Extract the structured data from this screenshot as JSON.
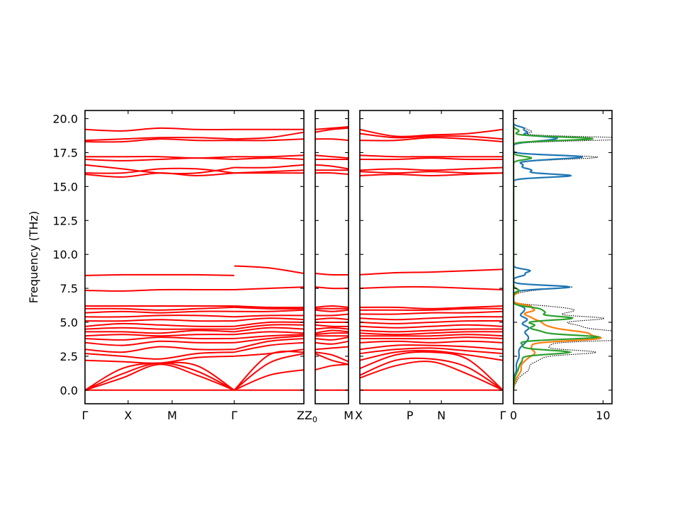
{
  "chart_data": {
    "type": "line",
    "ylabel": "Frequency (THz)",
    "ylim": [
      -1.0,
      20.6
    ],
    "yticks": [
      "0.0",
      "2.5",
      "5.0",
      "7.5",
      "10.0",
      "12.5",
      "15.0",
      "17.5",
      "20.0"
    ],
    "band_color": "#ff0000",
    "zero_line_color": "#0000ff",
    "panels": [
      {
        "id": "panel-1",
        "ticks": [
          {
            "label": "Γ",
            "pos": 0.0
          },
          {
            "label": "X",
            "pos": 0.197
          },
          {
            "label": "M",
            "pos": 0.398
          },
          {
            "label": "Γ",
            "pos": 0.682
          },
          {
            "label": "Z",
            "pos": 1.0
          }
        ],
        "segments": [
          {
            "from": 0.0,
            "to": 0.682,
            "bands": [
              [
                0.0,
                0.0,
                0.0,
                0.0,
                0.0
              ],
              [
                0.0,
                0.9,
                1.9,
                1.1,
                0.0
              ],
              [
                0.0,
                1.2,
                2.0,
                1.4,
                0.0
              ],
              [
                0.0,
                1.6,
                2.0,
                1.8,
                0.0
              ],
              [
                2.2,
                2.1,
                2.0,
                2.4,
                2.5
              ],
              [
                2.7,
                2.5,
                2.3,
                2.7,
                2.8
              ],
              [
                3.0,
                2.8,
                3.2,
                3.0,
                3.0
              ],
              [
                3.5,
                3.3,
                3.6,
                3.5,
                3.5
              ],
              [
                3.8,
                3.7,
                3.9,
                3.8,
                3.8
              ],
              [
                4.0,
                4.1,
                4.0,
                4.1,
                4.1
              ],
              [
                4.3,
                4.3,
                4.2,
                4.4,
                4.3
              ],
              [
                4.5,
                4.6,
                4.5,
                4.5,
                4.5
              ],
              [
                4.7,
                4.9,
                4.8,
                4.7,
                4.7
              ],
              [
                5.1,
                5.1,
                5.2,
                5.1,
                5.1
              ],
              [
                5.4,
                5.4,
                5.5,
                5.5,
                5.4
              ],
              [
                5.7,
                5.8,
                5.7,
                5.8,
                5.8
              ],
              [
                6.0,
                6.0,
                5.9,
                6.0,
                6.1
              ],
              [
                6.2,
                6.2,
                6.2,
                6.2,
                6.2
              ],
              [
                7.35,
                7.3,
                7.4,
                7.4,
                7.4
              ],
              [
                8.45,
                8.5,
                8.5,
                8.5,
                8.45
              ],
              [
                15.9,
                15.7,
                16.0,
                15.8,
                16.0
              ],
              [
                16.0,
                16.0,
                16.3,
                16.3,
                16.0
              ],
              [
                16.6,
                16.3,
                16.0,
                16.0,
                16.4
              ],
              [
                17.0,
                16.9,
                17.0,
                17.1,
                17.0
              ],
              [
                17.2,
                17.2,
                17.2,
                17.1,
                17.2
              ],
              [
                18.3,
                18.3,
                18.5,
                18.4,
                18.4
              ],
              [
                18.4,
                18.5,
                18.6,
                18.6,
                18.5
              ],
              [
                19.2,
                19.1,
                19.3,
                19.2,
                19.2
              ]
            ]
          },
          {
            "from": 0.682,
            "to": 1.0,
            "bands": [
              [
                0.0,
                0.0,
                0.0
              ],
              [
                0.0,
                1.1,
                1.5
              ],
              [
                0.0,
                2.0,
                2.7
              ],
              [
                0.0,
                2.6,
                2.8
              ],
              [
                2.5,
                2.7,
                3.0
              ],
              [
                2.8,
                3.3,
                3.5
              ],
              [
                3.0,
                3.6,
                3.8
              ],
              [
                3.5,
                3.8,
                4.0
              ],
              [
                3.8,
                4.0,
                4.1
              ],
              [
                4.1,
                4.3,
                4.2
              ],
              [
                4.3,
                4.6,
                4.5
              ],
              [
                4.5,
                4.8,
                4.8
              ],
              [
                4.7,
                5.0,
                5.0
              ],
              [
                5.1,
                5.3,
                5.2
              ],
              [
                5.4,
                5.5,
                5.5
              ],
              [
                5.8,
                5.8,
                5.9
              ],
              [
                6.1,
                6.0,
                6.0
              ],
              [
                6.2,
                6.1,
                6.1
              ],
              [
                7.4,
                7.5,
                7.6
              ],
              [
                9.15,
                9.0,
                8.6
              ],
              [
                16.0,
                16.0,
                16.0
              ],
              [
                16.0,
                16.1,
                16.2
              ],
              [
                16.4,
                16.4,
                16.6
              ],
              [
                17.0,
                17.1,
                17.0
              ],
              [
                17.2,
                17.2,
                17.3
              ],
              [
                18.4,
                18.4,
                18.5
              ],
              [
                18.5,
                18.6,
                19.0
              ],
              [
                19.2,
                19.2,
                19.2
              ]
            ]
          }
        ]
      },
      {
        "id": "panel-2",
        "ticks": [
          {
            "label": "Z",
            "pos": 0.0
          },
          {
            "label": "M",
            "pos": 1.0
          }
        ],
        "tick_Z0": {
          "main": "Z",
          "sub": "0"
        },
        "segments": [
          {
            "from": 0.0,
            "to": 1.0,
            "bands": [
              [
                0.0,
                0.0,
                0.0
              ],
              [
                1.5,
                1.8,
                1.9
              ],
              [
                2.7,
                2.2,
                1.9
              ],
              [
                2.8,
                2.6,
                2.1
              ],
              [
                3.0,
                3.1,
                3.2
              ],
              [
                3.5,
                3.4,
                3.6
              ],
              [
                3.8,
                3.7,
                3.9
              ],
              [
                4.0,
                4.0,
                4.0
              ],
              [
                4.1,
                4.2,
                4.2
              ],
              [
                4.2,
                4.4,
                4.3
              ],
              [
                4.5,
                4.6,
                4.5
              ],
              [
                4.8,
                4.7,
                4.7
              ],
              [
                5.0,
                5.0,
                5.0
              ],
              [
                5.2,
                5.3,
                5.2
              ],
              [
                5.5,
                5.5,
                5.6
              ],
              [
                5.9,
                5.8,
                5.9
              ],
              [
                6.0,
                6.0,
                6.0
              ],
              [
                6.1,
                6.2,
                6.1
              ],
              [
                7.6,
                7.5,
                7.5
              ],
              [
                8.6,
                8.5,
                8.5
              ],
              [
                16.0,
                16.0,
                15.9
              ],
              [
                16.2,
                16.2,
                16.2
              ],
              [
                16.6,
                16.5,
                16.3
              ],
              [
                17.0,
                17.0,
                17.0
              ],
              [
                17.3,
                17.2,
                17.1
              ],
              [
                18.5,
                18.5,
                18.4
              ],
              [
                19.0,
                19.2,
                19.3
              ],
              [
                19.2,
                19.3,
                19.4
              ]
            ]
          }
        ]
      },
      {
        "id": "panel-3",
        "ticks": [
          {
            "label": "X",
            "pos": 0.0
          },
          {
            "label": "P",
            "pos": 0.35
          },
          {
            "label": "N",
            "pos": 0.57
          },
          {
            "label": "Γ",
            "pos": 1.0
          }
        ],
        "segments": [
          {
            "from": 0.0,
            "to": 1.0,
            "bands": [
              [
                0.0,
                0.0,
                0.0,
                0.0,
                0.0
              ],
              [
                0.9,
                1.8,
                2.1,
                1.2,
                0.0
              ],
              [
                1.1,
                2.2,
                2.3,
                1.7,
                0.0
              ],
              [
                1.6,
                2.6,
                2.8,
                2.3,
                0.0
              ],
              [
                2.2,
                2.8,
                2.9,
                2.6,
                2.2
              ],
              [
                2.7,
                3.0,
                3.1,
                2.9,
                2.7
              ],
              [
                3.0,
                3.3,
                3.3,
                3.2,
                3.0
              ],
              [
                3.5,
                3.6,
                3.5,
                3.6,
                3.5
              ],
              [
                3.8,
                3.8,
                3.8,
                3.9,
                3.8
              ],
              [
                4.0,
                4.0,
                4.0,
                4.1,
                4.0
              ],
              [
                4.2,
                4.1,
                4.2,
                4.3,
                4.3
              ],
              [
                4.4,
                4.3,
                4.4,
                4.5,
                4.5
              ],
              [
                4.7,
                4.6,
                4.7,
                4.8,
                4.7
              ],
              [
                5.0,
                4.9,
                5.0,
                5.1,
                5.1
              ],
              [
                5.3,
                5.2,
                5.3,
                5.4,
                5.4
              ],
              [
                5.6,
                5.6,
                5.7,
                5.7,
                5.8
              ],
              [
                5.9,
                5.9,
                5.9,
                6.0,
                6.0
              ],
              [
                6.1,
                6.1,
                6.0,
                6.1,
                6.2
              ],
              [
                7.5,
                7.6,
                7.6,
                7.5,
                7.4
              ],
              [
                8.5,
                8.65,
                8.7,
                8.8,
                8.9
              ],
              [
                15.8,
                15.9,
                15.8,
                15.9,
                16.0
              ],
              [
                16.1,
                16.0,
                16.1,
                16.0,
                16.0
              ],
              [
                16.2,
                16.3,
                16.2,
                16.3,
                16.4
              ],
              [
                17.0,
                17.0,
                17.1,
                17.0,
                17.0
              ],
              [
                17.3,
                17.2,
                17.2,
                17.2,
                17.2
              ],
              [
                18.4,
                18.4,
                18.6,
                18.5,
                18.3
              ],
              [
                18.9,
                18.6,
                18.7,
                18.7,
                18.5
              ],
              [
                19.2,
                18.7,
                18.8,
                18.9,
                19.2
              ]
            ]
          }
        ]
      }
    ],
    "dos": {
      "xlim": [
        0,
        11
      ],
      "xticks": [
        "0",
        "10"
      ],
      "projections": [
        {
          "color": "#1f77b4",
          "peaks": [
            [
              0.6,
              0.05,
              0.2
            ],
            [
              1.5,
              0.3,
              0.3
            ],
            [
              2.5,
              0.6,
              0.4
            ],
            [
              3.5,
              1.0,
              0.35
            ],
            [
              4.0,
              1.2,
              0.3
            ],
            [
              4.6,
              1.5,
              0.2
            ],
            [
              5.2,
              1.5,
              0.2
            ],
            [
              5.8,
              1.0,
              0.2
            ],
            [
              6.1,
              0.8,
              0.15
            ],
            [
              7.4,
              0.5,
              0.12
            ],
            [
              7.6,
              6.2,
              0.12
            ],
            [
              8.5,
              1.2,
              0.12
            ],
            [
              8.8,
              1.8,
              0.12
            ],
            [
              15.8,
              6.4,
              0.12
            ],
            [
              16.2,
              2.0,
              0.15
            ],
            [
              16.6,
              1.0,
              0.12
            ],
            [
              17.0,
              2.5,
              0.12
            ],
            [
              17.2,
              7.0,
              0.12
            ],
            [
              18.4,
              2.6,
              0.12
            ],
            [
              18.6,
              4.0,
              0.12
            ],
            [
              19.0,
              1.5,
              0.12
            ],
            [
              19.3,
              1.1,
              0.12
            ]
          ]
        },
        {
          "color": "#ff7f0e",
          "peaks": [
            [
              0.8,
              0.2,
              0.3
            ],
            [
              1.5,
              0.8,
              0.35
            ],
            [
              2.3,
              1.2,
              0.3
            ],
            [
              2.8,
              2.0,
              0.25
            ],
            [
              3.3,
              1.6,
              0.2
            ],
            [
              3.8,
              8.5,
              0.18
            ],
            [
              4.2,
              7.2,
              0.2
            ],
            [
              4.6,
              3.2,
              0.2
            ],
            [
              5.0,
              2.5,
              0.2
            ],
            [
              5.4,
              1.5,
              0.2
            ],
            [
              5.9,
              2.2,
              0.15
            ],
            [
              6.2,
              1.6,
              0.12
            ],
            [
              7.3,
              0.6,
              0.15
            ]
          ]
        },
        {
          "color": "#2ca02c",
          "peaks": [
            [
              0.8,
              0.1,
              0.3
            ],
            [
              1.6,
              0.5,
              0.35
            ],
            [
              2.3,
              0.9,
              0.3
            ],
            [
              2.8,
              6.0,
              0.15
            ],
            [
              3.3,
              1.0,
              0.2
            ],
            [
              3.9,
              9.0,
              0.15
            ],
            [
              4.3,
              3.0,
              0.2
            ],
            [
              4.8,
              2.2,
              0.15
            ],
            [
              5.3,
              6.5,
              0.15
            ],
            [
              5.7,
              3.0,
              0.15
            ],
            [
              6.0,
              2.5,
              0.15
            ],
            [
              7.35,
              0.6,
              0.12
            ],
            [
              17.1,
              2.0,
              0.12
            ],
            [
              18.5,
              7.0,
              0.12
            ],
            [
              18.6,
              2.5,
              0.12
            ],
            [
              19.1,
              0.6,
              0.12
            ]
          ]
        }
      ],
      "total_color": "#000000"
    }
  }
}
